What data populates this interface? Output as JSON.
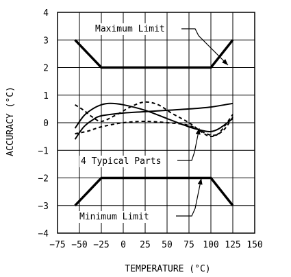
{
  "chart_data": {
    "type": "line",
    "xlabel": "TEMPERATURE (°C)",
    "ylabel": "ACCURACY (°C)",
    "xlim": [
      -75,
      150
    ],
    "ylim": [
      -4,
      4
    ],
    "x_ticks": [
      -75,
      -50,
      -25,
      0,
      25,
      50,
      75,
      100,
      125,
      150
    ],
    "y_ticks": [
      -4,
      -3,
      -2,
      -1,
      0,
      1,
      2,
      3,
      4
    ],
    "x_tick_labels": [
      "−75",
      "−50",
      "−25",
      "0",
      "25",
      "50",
      "75",
      "100",
      "125",
      "150"
    ],
    "y_tick_labels": [
      "−4",
      "−3",
      "−2",
      "−1",
      "0",
      "1",
      "2",
      "3",
      "4"
    ],
    "grid": true,
    "series": [
      {
        "name": "Maximum Limit",
        "style": "limit",
        "points": [
          [
            -55,
            3
          ],
          [
            -25,
            2
          ],
          [
            100,
            2
          ],
          [
            125,
            3
          ]
        ]
      },
      {
        "name": "Minimum Limit",
        "style": "limit",
        "points": [
          [
            -55,
            -3
          ],
          [
            -25,
            -2
          ],
          [
            100,
            -2
          ],
          [
            125,
            -3
          ]
        ]
      },
      {
        "style": "solid",
        "points": [
          [
            -55,
            -0.2
          ],
          [
            -45,
            0.25
          ],
          [
            -35,
            0.5
          ],
          [
            -25,
            0.65
          ],
          [
            -15,
            0.7
          ],
          [
            0,
            0.65
          ],
          [
            25,
            0.45
          ],
          [
            50,
            0.15
          ],
          [
            75,
            -0.15
          ],
          [
            90,
            -0.28
          ],
          [
            100,
            -0.32
          ],
          [
            110,
            -0.2
          ],
          [
            125,
            0.15
          ]
        ]
      },
      {
        "style": "solid",
        "points": [
          [
            -55,
            -0.6
          ],
          [
            -45,
            -0.15
          ],
          [
            -35,
            0.1
          ],
          [
            -25,
            0.25
          ],
          [
            0,
            0.35
          ],
          [
            25,
            0.4
          ],
          [
            50,
            0.45
          ],
          [
            75,
            0.5
          ],
          [
            100,
            0.57
          ],
          [
            125,
            0.7
          ]
        ]
      },
      {
        "style": "dashed",
        "points": [
          [
            -55,
            0.65
          ],
          [
            -45,
            0.45
          ],
          [
            -35,
            0.2
          ],
          [
            -25,
            0.05
          ],
          [
            -10,
            0.25
          ],
          [
            10,
            0.6
          ],
          [
            25,
            0.75
          ],
          [
            40,
            0.65
          ],
          [
            55,
            0.35
          ],
          [
            75,
            0.0
          ],
          [
            90,
            -0.35
          ],
          [
            100,
            -0.5
          ],
          [
            110,
            -0.35
          ],
          [
            125,
            0.3
          ]
        ]
      },
      {
        "style": "dashed",
        "points": [
          [
            -55,
            -0.4
          ],
          [
            -40,
            -0.3
          ],
          [
            -25,
            -0.15
          ],
          [
            0,
            0.0
          ],
          [
            25,
            0.05
          ],
          [
            50,
            0.0
          ],
          [
            75,
            -0.1
          ],
          [
            95,
            -0.4
          ],
          [
            105,
            -0.45
          ],
          [
            115,
            -0.25
          ],
          [
            125,
            0.2
          ]
        ]
      }
    ],
    "annotations": [
      {
        "text": "Maximum Limit",
        "x": 100,
        "y": 2
      },
      {
        "text": "4 Typical Parts",
        "x": 72,
        "y": -0.25
      },
      {
        "text": "Minimum Limit",
        "x": 75,
        "y": -2
      }
    ]
  }
}
